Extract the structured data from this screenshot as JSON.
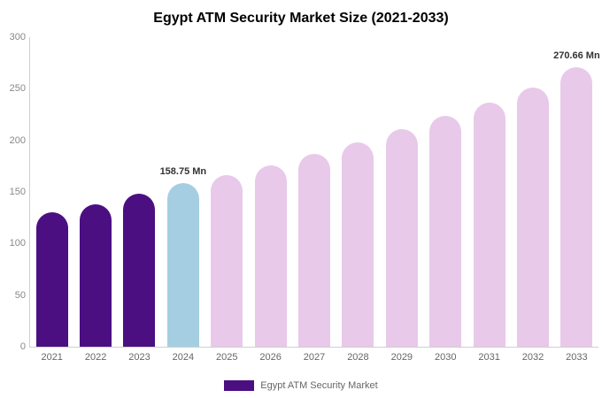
{
  "title": "Egypt ATM Security Market Size (2021-2033)",
  "legend": {
    "label": "Egypt ATM Security Market"
  },
  "colors": {
    "historical": "#4B0F82",
    "current": "#A6CEE3",
    "forecast": "#E8C9EA"
  },
  "chart_data": {
    "type": "bar",
    "title": "Egypt ATM Security Market Size (2021-2033)",
    "categories": [
      "2021",
      "2022",
      "2023",
      "2024",
      "2025",
      "2026",
      "2027",
      "2028",
      "2029",
      "2030",
      "2031",
      "2032",
      "2033"
    ],
    "values": [
      130,
      138,
      148,
      158.75,
      166,
      176,
      187,
      198,
      211,
      224,
      237,
      251,
      270.66
    ],
    "unit": "Mn",
    "bar_color_keys": [
      "historical",
      "historical",
      "historical",
      "current",
      "forecast",
      "forecast",
      "forecast",
      "forecast",
      "forecast",
      "forecast",
      "forecast",
      "forecast",
      "forecast"
    ],
    "annotations": [
      {
        "category": "2024",
        "label": "158.75 Mn"
      },
      {
        "category": "2033",
        "label": "270.66 Mn"
      }
    ],
    "xlabel": "",
    "ylabel": "",
    "ylim": [
      0,
      300
    ],
    "yticks": [
      0,
      50,
      100,
      150,
      200,
      250,
      300
    ],
    "grid": false,
    "legend_position": "bottom"
  }
}
